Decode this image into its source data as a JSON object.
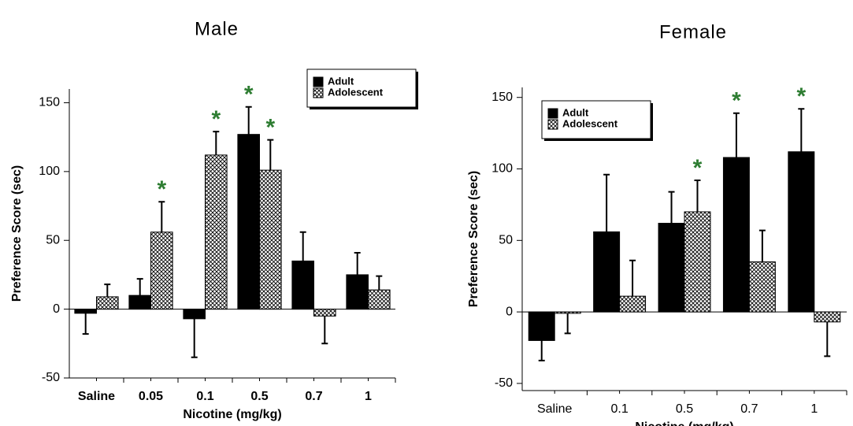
{
  "chart_data": [
    {
      "type": "bar",
      "title": "Male",
      "ylabel": "Preference Score (sec)",
      "xlabel": "Nicotine  (mg/kg)",
      "categories": [
        "Saline",
        "0.05",
        "0.1",
        "0.5",
        "0.7",
        "1"
      ],
      "series": [
        {
          "name": "Adult",
          "color": "#000000",
          "pattern": "solid",
          "values": [
            -3,
            10,
            -7,
            127,
            35,
            25
          ],
          "errors": [
            15,
            12,
            28,
            20,
            21,
            16
          ],
          "significant": [
            false,
            false,
            false,
            true,
            false,
            false
          ]
        },
        {
          "name": "Adolescent",
          "color": "#000000",
          "pattern": "crosshatch",
          "values": [
            9,
            56,
            112,
            101,
            -5,
            14
          ],
          "errors": [
            9,
            22,
            17,
            22,
            20,
            10
          ],
          "significant": [
            false,
            true,
            true,
            true,
            false,
            false
          ]
        }
      ],
      "significance_mark": "*",
      "ylim": [
        -50,
        160
      ],
      "yticks": [
        -50,
        0,
        50,
        100,
        150
      ],
      "legend": "upper right"
    },
    {
      "type": "bar",
      "title": "Female",
      "ylabel": "Preference Score (sec)",
      "xlabel": "Nicotine (mg/kg)",
      "categories": [
        "Saline",
        "0.1",
        "0.5",
        "0.7",
        "1"
      ],
      "series": [
        {
          "name": "Adult",
          "color": "#000000",
          "pattern": "solid",
          "values": [
            -20,
            56,
            62,
            108,
            112
          ],
          "errors": [
            14,
            40,
            22,
            31,
            30
          ],
          "significant": [
            false,
            false,
            false,
            true,
            true
          ]
        },
        {
          "name": "Adolescent",
          "color": "#000000",
          "pattern": "crosshatch",
          "values": [
            -1,
            11,
            70,
            35,
            -7
          ],
          "errors": [
            14,
            25,
            22,
            22,
            24
          ],
          "significant": [
            false,
            false,
            true,
            false,
            false
          ]
        }
      ],
      "significance_mark": "*",
      "ylim": [
        -55,
        157
      ],
      "yticks": [
        -50,
        0,
        50,
        100,
        150
      ],
      "legend": "upper left"
    }
  ]
}
